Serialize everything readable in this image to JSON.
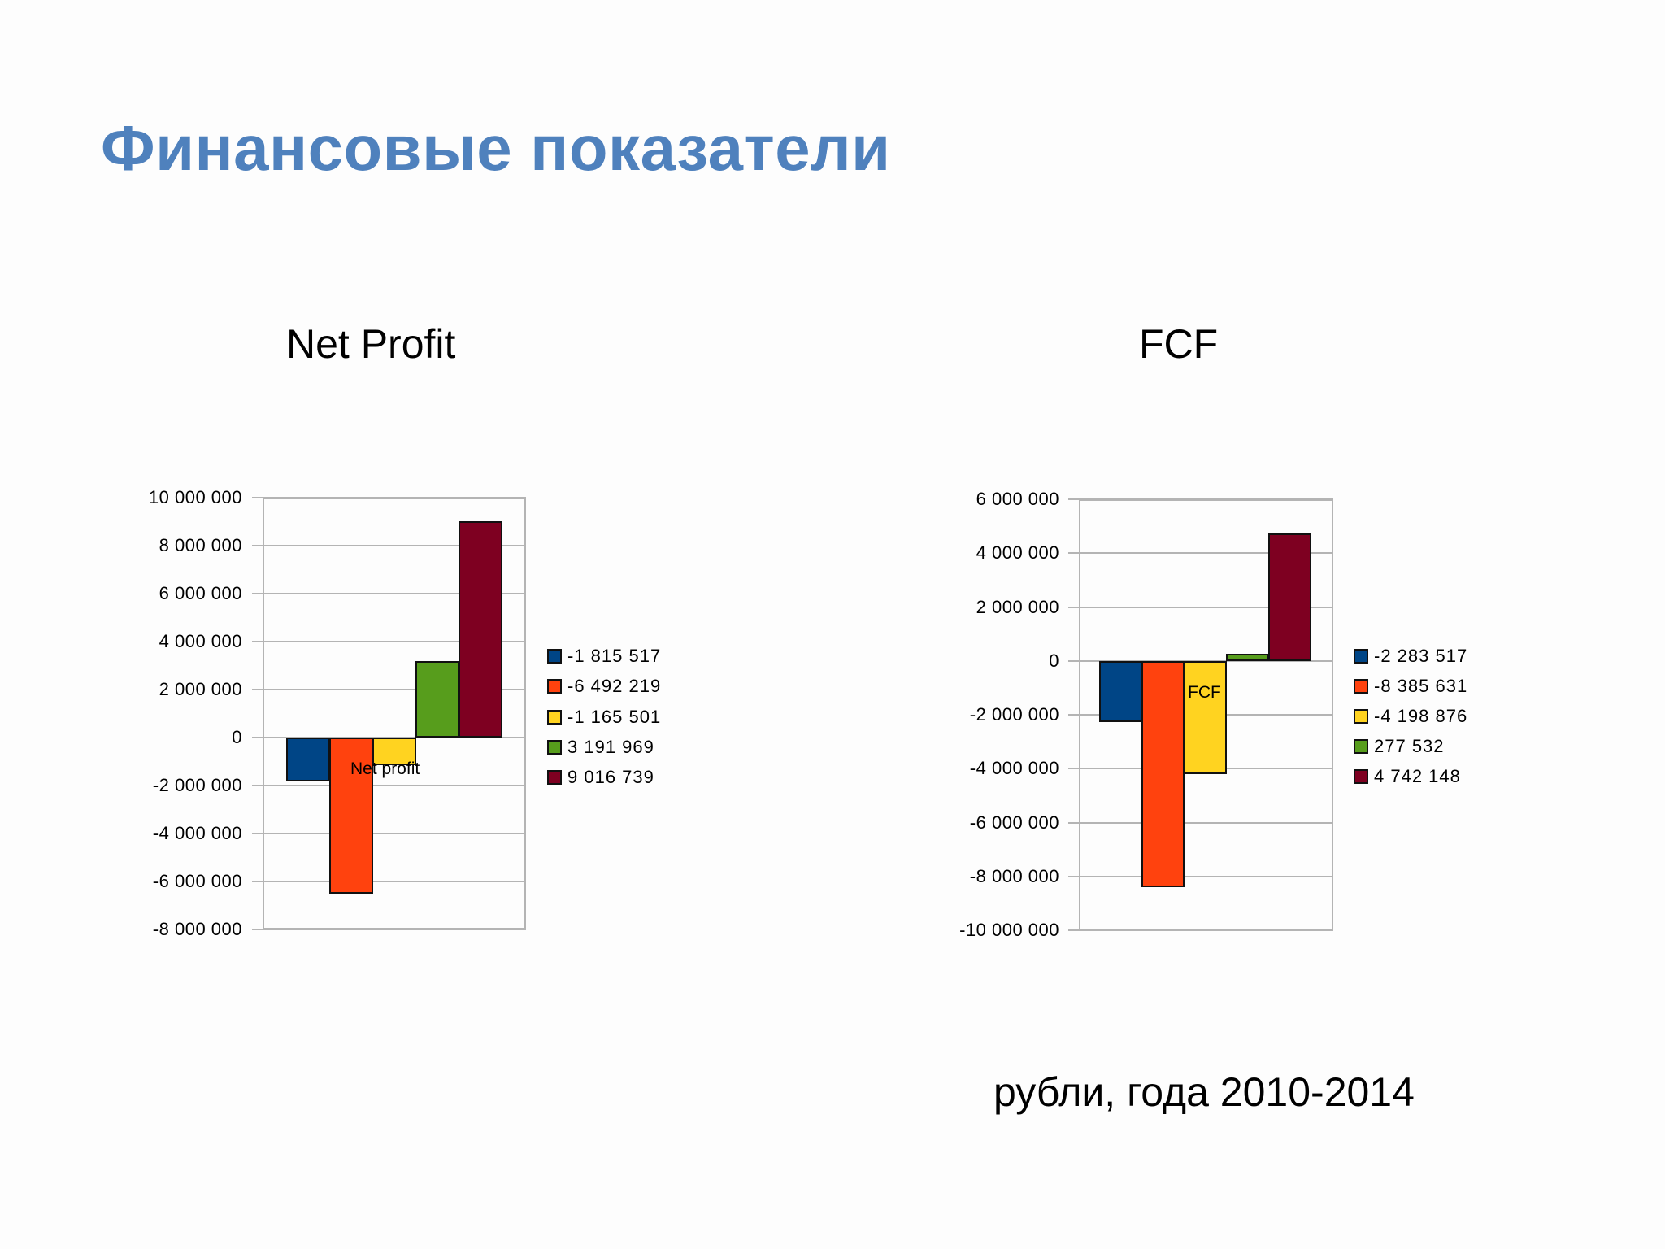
{
  "slide": {
    "title": "Финансовые показатели",
    "subtitle": "рубли, года 2010-2014",
    "title_color": "#4f81bd"
  },
  "series_colors": [
    "#004586",
    "#ff420e",
    "#ffd320",
    "#579d1c",
    "#7e0021"
  ],
  "chart_data": [
    {
      "type": "bar",
      "title": "Net Profit",
      "inner_label": "Net profit",
      "xlabel": "",
      "ylabel": "",
      "ylim": [
        -8000000,
        10000000
      ],
      "yticks": [
        10000000,
        8000000,
        6000000,
        4000000,
        2000000,
        0,
        -2000000,
        -4000000,
        -6000000,
        -8000000
      ],
      "ytick_labels": [
        "10 000 000",
        "8 000 000",
        "6 000 000",
        "4 000 000",
        "2 000 000",
        "0",
        "-2 000 000",
        "-4 000 000",
        "-6 000 000",
        "-8 000 000"
      ],
      "grid": true,
      "legend_position": "right",
      "categories": [
        "Net profit"
      ],
      "series": [
        {
          "name": "-1 815 517",
          "values": [
            -1815517
          ]
        },
        {
          "name": "-6 492 219",
          "values": [
            -6492219
          ]
        },
        {
          "name": "-1 165 501",
          "values": [
            -1165501
          ]
        },
        {
          "name": "3 191 969",
          "values": [
            3191969
          ]
        },
        {
          "name": "9 016 739",
          "values": [
            9016739
          ]
        }
      ]
    },
    {
      "type": "bar",
      "title": "FCF",
      "inner_label": "FCF",
      "xlabel": "",
      "ylabel": "",
      "ylim": [
        -10000000,
        6000000
      ],
      "yticks": [
        6000000,
        4000000,
        2000000,
        0,
        -2000000,
        -4000000,
        -6000000,
        -8000000,
        -10000000
      ],
      "ytick_labels": [
        "6 000 000",
        "4 000 000",
        "2 000 000",
        "0",
        "-2 000 000",
        "-4 000 000",
        "-6 000 000",
        "-8 000 000",
        "-10 000 000"
      ],
      "grid": true,
      "legend_position": "right",
      "categories": [
        "FCF"
      ],
      "series": [
        {
          "name": "-2 283 517",
          "values": [
            -2283517
          ]
        },
        {
          "name": "-8 385 631",
          "values": [
            -8385631
          ]
        },
        {
          "name": "-4 198 876",
          "values": [
            -4198876
          ]
        },
        {
          "name": "277 532",
          "values": [
            277532
          ]
        },
        {
          "name": "4 742 148",
          "values": [
            4742148
          ]
        }
      ]
    }
  ]
}
